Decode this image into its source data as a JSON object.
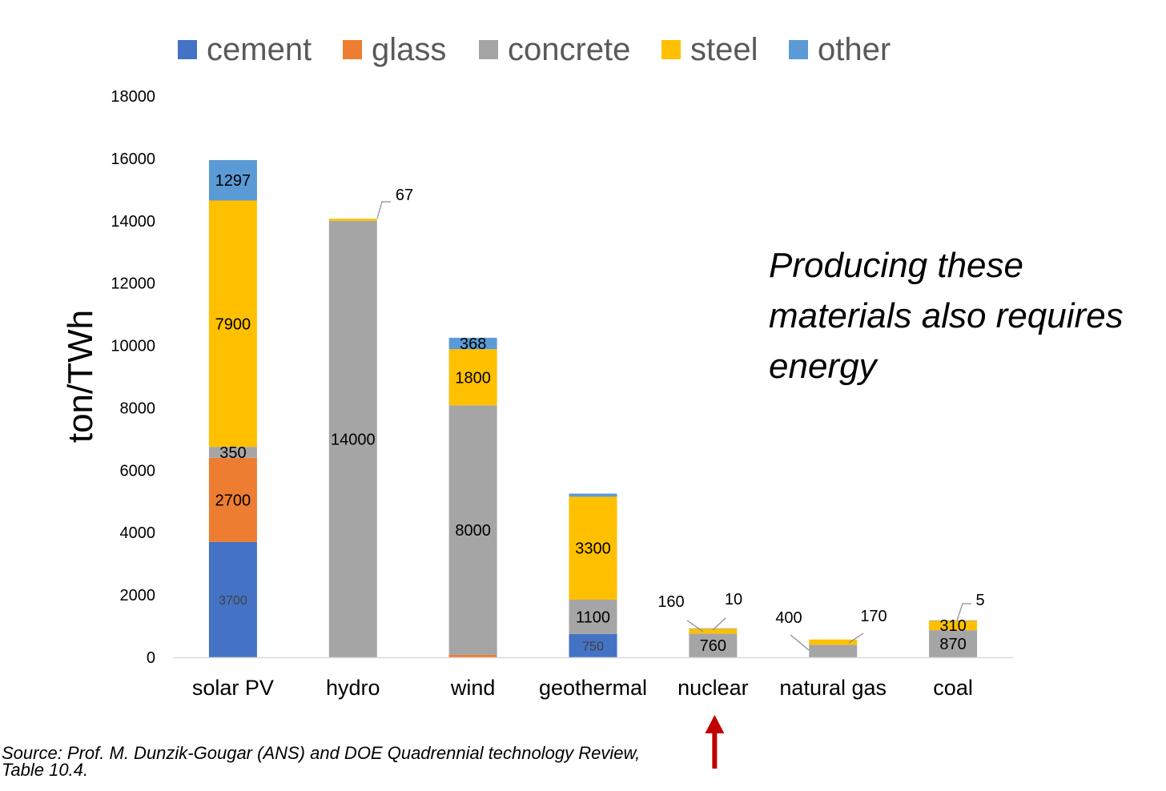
{
  "chart_data": {
    "type": "bar",
    "stacked": true,
    "categories": [
      "solar PV",
      "hydro",
      "wind",
      "geothermal",
      "nuclear",
      "natural gas",
      "coal"
    ],
    "series": [
      {
        "name": "cement",
        "color": "#4472C4",
        "values": [
          3700,
          0,
          0,
          750,
          0,
          0,
          0
        ]
      },
      {
        "name": "glass",
        "color": "#ED7D31",
        "values": [
          2700,
          0,
          80,
          0,
          0,
          0,
          0
        ]
      },
      {
        "name": "concrete",
        "color": "#A5A5A5",
        "values": [
          350,
          14000,
          8000,
          1100,
          760,
          400,
          870
        ]
      },
      {
        "name": "steel",
        "color": "#FFC000",
        "values": [
          7900,
          67,
          1800,
          3300,
          160,
          170,
          310
        ]
      },
      {
        "name": "other",
        "color": "#5B9BD5",
        "values": [
          1297,
          0,
          368,
          100,
          10,
          0,
          5
        ]
      }
    ],
    "data_labels": [
      {
        "category": "solar PV",
        "series": "cement",
        "text": "3700"
      },
      {
        "category": "solar PV",
        "series": "glass",
        "text": "2700"
      },
      {
        "category": "solar PV",
        "series": "concrete",
        "text": "350"
      },
      {
        "category": "solar PV",
        "series": "steel",
        "text": "7900"
      },
      {
        "category": "solar PV",
        "series": "other",
        "text": "1297"
      },
      {
        "category": "hydro",
        "series": "concrete",
        "text": "14000"
      },
      {
        "category": "hydro",
        "series": "steel",
        "text": "67",
        "callout": true
      },
      {
        "category": "wind",
        "series": "concrete",
        "text": "8000"
      },
      {
        "category": "wind",
        "series": "steel",
        "text": "1800"
      },
      {
        "category": "wind",
        "series": "other",
        "text": "368"
      },
      {
        "category": "geothermal",
        "series": "cement",
        "text": "750"
      },
      {
        "category": "geothermal",
        "series": "concrete",
        "text": "1100"
      },
      {
        "category": "geothermal",
        "series": "steel",
        "text": "3300"
      },
      {
        "category": "nuclear",
        "series": "concrete",
        "text": "760"
      },
      {
        "category": "nuclear",
        "series": "steel",
        "text": "160",
        "callout": true
      },
      {
        "category": "nuclear",
        "series": "other",
        "text": "10",
        "callout": true
      },
      {
        "category": "natural gas",
        "series": "concrete",
        "text": "400",
        "callout": true
      },
      {
        "category": "natural gas",
        "series": "steel",
        "text": "170",
        "callout": true
      },
      {
        "category": "coal",
        "series": "concrete",
        "text": "870"
      },
      {
        "category": "coal",
        "series": "steel",
        "text": "310"
      },
      {
        "category": "coal",
        "series": "other",
        "text": "5",
        "callout": true
      }
    ],
    "ylabel": "ton/TWh",
    "xlabel": "",
    "ylim": [
      0,
      18000
    ],
    "yticks": [
      0,
      2000,
      4000,
      6000,
      8000,
      10000,
      12000,
      14000,
      16000,
      18000
    ],
    "grid": false,
    "legend_position": "top",
    "highlight_category": "nuclear",
    "highlight_marker": "red-arrow",
    "highlight_color": "#C00000"
  },
  "annotation": {
    "lines": [
      "Producing these",
      "materials also requires",
      "energy"
    ]
  },
  "source": {
    "lines": [
      "Source: Prof. M. Dunzik-Gougar (ANS) and DOE Quadrennial technology Review,",
      "Table 10.4."
    ]
  }
}
